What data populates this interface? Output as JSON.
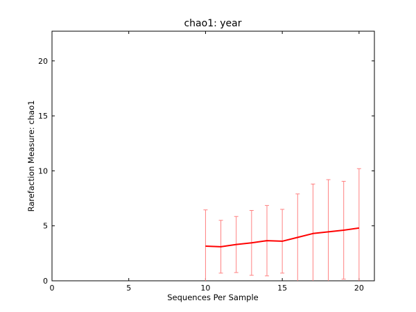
{
  "chart_data": {
    "type": "line",
    "title": "chao1: year",
    "xlabel": "Sequences Per Sample",
    "ylabel": "Rarefaction Measure: chao1",
    "xlim": [
      0,
      21
    ],
    "ylim": [
      0,
      22.7
    ],
    "xticks": [
      0,
      5,
      10,
      15,
      20
    ],
    "yticks": [
      0,
      5,
      10,
      15,
      20
    ],
    "grid": false,
    "series": [
      {
        "color": "#ff0000",
        "errorbar_color": "#ff8080",
        "points": [
          {
            "x": 10,
            "y": 3.15,
            "err": 3.3
          },
          {
            "x": 11,
            "y": 3.1,
            "err": 2.4
          },
          {
            "x": 12,
            "y": 3.3,
            "err": 2.55
          },
          {
            "x": 13,
            "y": 3.45,
            "err": 2.95
          },
          {
            "x": 14,
            "y": 3.65,
            "err": 3.2
          },
          {
            "x": 15,
            "y": 3.6,
            "err": 2.9
          },
          {
            "x": 16,
            "y": 3.95,
            "err": 3.95
          },
          {
            "x": 17,
            "y": 4.3,
            "err": 4.5
          },
          {
            "x": 18,
            "y": 4.45,
            "err": 4.75
          },
          {
            "x": 19,
            "y": 4.6,
            "err": 4.45
          },
          {
            "x": 20,
            "y": 4.8,
            "err": 5.4
          }
        ]
      }
    ]
  }
}
